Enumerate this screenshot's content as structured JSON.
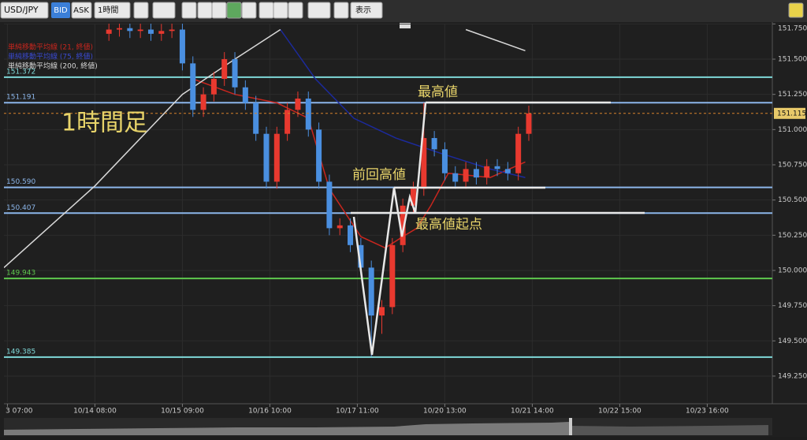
{
  "toolbar": {
    "symbol": "USD/JPY",
    "bid": "BID",
    "ask": "ASK",
    "timeframe": "1時間",
    "view": "表示"
  },
  "chart_data": {
    "type": "candlestick",
    "x": [
      30,
      33,
      36,
      39,
      42,
      45,
      48,
      51,
      54,
      57,
      60,
      63,
      66,
      69,
      72,
      75,
      78,
      81,
      84,
      87,
      90,
      93,
      96,
      99,
      102,
      105,
      108,
      111,
      114,
      117,
      120,
      123,
      126,
      129,
      132,
      135,
      138,
      141,
      144,
      147,
      150
    ],
    "open": [
      151.68,
      151.71,
      151.72,
      151.7,
      151.71,
      151.68,
      151.7,
      151.71,
      151.47,
      151.14,
      151.25,
      151.36,
      151.5,
      151.3,
      151.19,
      150.97,
      150.63,
      150.97,
      151.14,
      151.22,
      151.0,
      150.63,
      150.3,
      150.32,
      150.18,
      150.02,
      149.68,
      149.74,
      150.18,
      150.46,
      150.58,
      150.94,
      150.86,
      150.69,
      150.63,
      150.72,
      150.66,
      150.74,
      150.72,
      150.69,
      150.97
    ],
    "high": [
      151.76,
      151.77,
      151.77,
      151.76,
      151.76,
      151.75,
      151.76,
      151.76,
      151.52,
      151.3,
      151.41,
      151.55,
      151.55,
      151.35,
      151.24,
      151.02,
      151.02,
      151.19,
      151.27,
      151.27,
      151.05,
      150.68,
      150.37,
      150.37,
      150.23,
      150.07,
      149.79,
      150.23,
      150.51,
      150.63,
      151.19,
      150.99,
      150.91,
      150.74,
      150.77,
      150.77,
      150.79,
      150.79,
      150.77,
      151.02,
      151.17
    ],
    "low": [
      151.63,
      151.66,
      151.65,
      151.65,
      151.63,
      151.63,
      151.65,
      151.42,
      151.09,
      151.09,
      151.2,
      151.31,
      151.25,
      151.14,
      150.92,
      150.58,
      150.58,
      150.92,
      151.09,
      150.95,
      150.58,
      150.25,
      150.25,
      150.13,
      149.97,
      149.39,
      149.55,
      149.69,
      150.13,
      150.41,
      150.53,
      150.81,
      150.64,
      150.58,
      150.58,
      150.61,
      150.61,
      150.67,
      150.64,
      150.64,
      150.92
    ],
    "close": [
      151.71,
      151.72,
      151.7,
      151.71,
      151.68,
      151.7,
      151.71,
      151.47,
      151.14,
      151.25,
      151.36,
      151.5,
      151.3,
      151.19,
      150.97,
      150.63,
      150.97,
      151.14,
      151.22,
      151.0,
      150.63,
      150.3,
      150.32,
      150.18,
      150.02,
      149.68,
      149.74,
      150.18,
      150.46,
      150.58,
      150.94,
      150.86,
      150.69,
      150.63,
      150.72,
      150.66,
      150.74,
      150.72,
      150.69,
      150.97,
      151.115
    ],
    "up_color": "#e8392f",
    "down_color": "#4a8fe0",
    "lines": [
      {
        "name": "単純移動平均線 (21, 終値)",
        "color": "#c8261e",
        "x": [
          54,
          66,
          78,
          87,
          93,
          102,
          109,
          114,
          118,
          122,
          127,
          139,
          149
        ],
        "values": [
          151.36,
          151.25,
          151.19,
          151.08,
          150.58,
          150.24,
          150.16,
          150.24,
          150.3,
          150.46,
          150.69,
          150.66,
          150.77
        ]
      },
      {
        "name": "単純移動平均線 (75, 終値)",
        "color": "#1c2a9c",
        "x": [
          79,
          89,
          100,
          112,
          125,
          139,
          149
        ],
        "values": [
          151.71,
          151.36,
          151.08,
          150.94,
          150.83,
          150.72,
          150.66
        ]
      },
      {
        "name": "単純移動平均線 (200, 終値)",
        "color": "#d8d8d8",
        "x": [
          0,
          26,
          51,
          66,
          79,
          105,
          132,
          149
        ],
        "values": [
          150.02,
          150.6,
          151.25,
          151.5,
          151.71,
          null,
          151.71,
          151.56
        ]
      }
    ],
    "levels": [
      {
        "value": 151.372,
        "label": "151.372",
        "color": "#7fd8d8"
      },
      {
        "value": 151.191,
        "label": "151.191",
        "color": "#8cb6ea"
      },
      {
        "value": 150.59,
        "label": "150.590",
        "color": "#8cb6ea"
      },
      {
        "value": 150.407,
        "label": "150.407",
        "color": "#8cb6ea"
      },
      {
        "value": 149.943,
        "label": "149.943",
        "color": "#5ec84e"
      },
      {
        "value": 149.385,
        "label": "149.385",
        "color": "#7fd8d8"
      }
    ],
    "current_price": 151.115,
    "xlim": [
      0,
      219.6
    ],
    "ylim": [
      149.065,
      151.752
    ],
    "xticks": [
      {
        "value": 1,
        "label": "3 07:00"
      },
      {
        "value": 26,
        "label": "10/14 08:00"
      },
      {
        "value": 51,
        "label": "10/15 09:00"
      },
      {
        "value": 76,
        "label": "10/16 10:00"
      },
      {
        "value": 101,
        "label": "10/17 11:00"
      },
      {
        "value": 126,
        "label": "10/20 13:00"
      },
      {
        "value": 151,
        "label": "10/21 14:00"
      },
      {
        "value": 176,
        "label": "10/22 15:00"
      },
      {
        "value": 201,
        "label": "10/23 16:00"
      }
    ],
    "yticks": [
      {
        "value": 149.25,
        "label": "149.250"
      },
      {
        "value": 149.5,
        "label": "149.500"
      },
      {
        "value": 149.75,
        "label": "149.750"
      },
      {
        "value": 150,
        "label": "150.000"
      },
      {
        "value": 150.25,
        "label": "150.250"
      },
      {
        "value": 150.5,
        "label": "150.500"
      },
      {
        "value": 150.75,
        "label": "150.750"
      },
      {
        "value": 151,
        "label": "151.000"
      },
      {
        "value": 151.25,
        "label": "151.250"
      },
      {
        "value": 151.5,
        "label": "151.500"
      },
      {
        "value": 151.75,
        "label": "151.750"
      }
    ],
    "grid": true,
    "annotations": [
      "1時間足",
      "最高値",
      "前回高値",
      "最高値起点"
    ]
  }
}
